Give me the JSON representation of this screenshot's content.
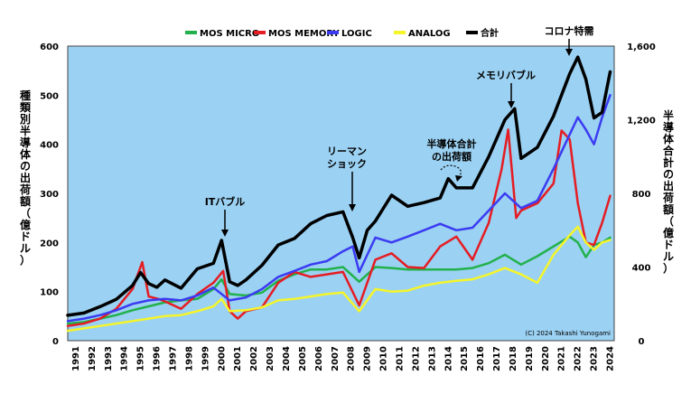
{
  "chart_data": {
    "type": "line",
    "ylabel_left": "種類別半導体の出荷額（億ドル）",
    "ylabel_right": "半導体合計の出荷額（億ドル）",
    "ylim_left": [
      0,
      600
    ],
    "ylim_right": [
      0,
      1600
    ],
    "yticks_left": [
      "0",
      "100",
      "200",
      "300",
      "400",
      "500",
      "600"
    ],
    "yticks_right": [
      "0",
      "400",
      "800",
      "1,200",
      "1,600"
    ],
    "x_range": [
      1991,
      2024.75
    ],
    "x_ticks": [
      "1991",
      "1992",
      "1993",
      "1994",
      "1995",
      "1996",
      "1997",
      "1998",
      "1999",
      "2000",
      "2001",
      "2002",
      "2003",
      "2004",
      "2005",
      "2006",
      "2007",
      "2008",
      "2009",
      "2010",
      "2011",
      "2012",
      "2013",
      "2014",
      "2015",
      "2016",
      "2017",
      "2018",
      "2019",
      "2020",
      "2021",
      "2022",
      "2023",
      "2024"
    ],
    "background": "#9bd1f2",
    "grid": false,
    "legend_position": "top",
    "series": [
      {
        "name": "MOS MICRO",
        "color": "#22b14c",
        "axis": "left",
        "width": 2.5,
        "x": [
          1991,
          1992,
          1993,
          1994,
          1995,
          1996,
          1997,
          1998,
          1999,
          2000,
          2000.5,
          2001,
          2002,
          2003,
          2004,
          2005,
          2006,
          2007,
          2008,
          2009,
          2010,
          2011,
          2012,
          2013,
          2014,
          2015,
          2016,
          2017,
          2018,
          2019,
          2020,
          2021,
          2022,
          2022.5,
          2023,
          2023.5,
          2024,
          2024.5
        ],
        "y": [
          35,
          38,
          45,
          52,
          62,
          70,
          78,
          82,
          85,
          105,
          125,
          95,
          92,
          98,
          122,
          135,
          145,
          145,
          150,
          120,
          150,
          148,
          145,
          145,
          145,
          145,
          148,
          158,
          175,
          155,
          172,
          192,
          212,
          200,
          170,
          195,
          200,
          210
        ]
      },
      {
        "name": "MOS MEMORY",
        "color": "#e51c23",
        "axis": "left",
        "width": 2.5,
        "x": [
          1991,
          1992,
          1993,
          1994,
          1995,
          1995.6,
          1996,
          1996.6,
          1997,
          1998,
          1999,
          2000,
          2000.6,
          2001,
          2001.5,
          2002,
          2003,
          2004,
          2005,
          2006,
          2007,
          2008,
          2009,
          2010,
          2011,
          2012,
          2013,
          2014,
          2015,
          2016,
          2017,
          2017.8,
          2018.2,
          2018.7,
          2019,
          2020,
          2021,
          2021.5,
          2022,
          2022.5,
          2023,
          2023.5,
          2024,
          2024.5
        ],
        "y": [
          30,
          35,
          45,
          65,
          105,
          160,
          90,
          85,
          80,
          65,
          95,
          118,
          142,
          60,
          45,
          60,
          68,
          118,
          140,
          130,
          135,
          140,
          72,
          165,
          178,
          150,
          148,
          192,
          212,
          165,
          240,
          350,
          430,
          250,
          265,
          280,
          320,
          428,
          410,
          280,
          200,
          195,
          240,
          295
        ]
      },
      {
        "name": "LOGIC",
        "color": "#3b3bf2",
        "axis": "left",
        "width": 2.5,
        "x": [
          1991,
          1992,
          1993,
          1994,
          1995,
          1996,
          1997,
          1998,
          1999,
          2000,
          2001,
          2002,
          2003,
          2004,
          2005,
          2006,
          2007,
          2008,
          2008.6,
          2009,
          2010,
          2011,
          2012,
          2013,
          2014,
          2015,
          2016,
          2017,
          2018,
          2019,
          2020,
          2021,
          2022,
          2022.5,
          2023,
          2023.5,
          2024,
          2024.5
        ],
        "y": [
          40,
          45,
          52,
          62,
          75,
          82,
          85,
          82,
          92,
          108,
          82,
          88,
          105,
          130,
          142,
          155,
          162,
          182,
          192,
          140,
          210,
          200,
          212,
          225,
          238,
          225,
          230,
          265,
          300,
          270,
          285,
          350,
          420,
          455,
          430,
          400,
          455,
          500
        ]
      },
      {
        "name": "ANALOG",
        "color": "#f5f52a",
        "axis": "left",
        "width": 2.5,
        "x": [
          1991,
          1992,
          1993,
          1994,
          1995,
          1996,
          1997,
          1998,
          1999,
          2000,
          2000.5,
          2001,
          2002,
          2003,
          2004,
          2005,
          2006,
          2007,
          2008,
          2009,
          2010,
          2011,
          2012,
          2013,
          2014,
          2015,
          2016,
          2017,
          2018,
          2019,
          2020,
          2021,
          2022,
          2022.5,
          2023,
          2023.5,
          2024,
          2024.5
        ],
        "y": [
          20,
          25,
          30,
          35,
          40,
          45,
          50,
          52,
          60,
          70,
          85,
          60,
          62,
          68,
          82,
          85,
          90,
          95,
          98,
          60,
          105,
          100,
          102,
          112,
          118,
          122,
          125,
          135,
          148,
          135,
          118,
          175,
          215,
          232,
          200,
          185,
          200,
          205
        ]
      },
      {
        "name": "合計",
        "color": "#000000",
        "axis": "right",
        "width": 3.5,
        "x": [
          1991,
          1992,
          1993,
          1994,
          1995,
          1995.5,
          1996,
          1996.5,
          1997,
          1998,
          1999,
          2000,
          2000.5,
          2001,
          2001.5,
          2002,
          2003,
          2004,
          2005,
          2006,
          2007,
          2008,
          2008.6,
          2009,
          2009.5,
          2010,
          2011,
          2012,
          2013,
          2014,
          2014.5,
          2015,
          2016,
          2017,
          2018,
          2018.6,
          2019,
          2020,
          2021,
          2022,
          2022.5,
          2023,
          2023.5,
          2024,
          2024.5
        ],
        "y": [
          138,
          150,
          185,
          225,
          300,
          370,
          310,
          290,
          330,
          285,
          390,
          420,
          545,
          320,
          300,
          330,
          410,
          520,
          555,
          635,
          680,
          700,
          560,
          450,
          600,
          650,
          790,
          730,
          750,
          775,
          880,
          830,
          830,
          1000,
          1200,
          1260,
          990,
          1050,
          1220,
          1450,
          1540,
          1420,
          1210,
          1240,
          1460
        ]
      }
    ],
    "annotations": [
      {
        "text": "ITバブル"
      },
      {
        "text": "リーマン"
      },
      {
        "text": "ショック"
      },
      {
        "text": "半導体合計"
      },
      {
        "text": "の出荷額"
      },
      {
        "text": "メモリバブル"
      },
      {
        "text": "コロナ特需"
      }
    ],
    "copyright": "(C) 2024 Takashi Yunogami"
  }
}
